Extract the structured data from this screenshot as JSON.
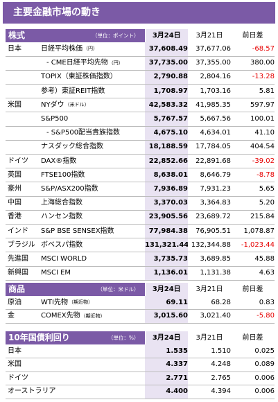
{
  "title": "主要金融市場の動き",
  "sections": [
    {
      "title": "株式",
      "unit": "（単位：ポイント）",
      "columns": [
        "3月24日",
        "3月21日",
        "前日差"
      ],
      "rows": [
        {
          "country": "日本",
          "name": "日経平均株価",
          "unit": "（円）",
          "d1": "37,608.49",
          "d2": "37,677.06",
          "diff": "-68.57",
          "neg": true,
          "indent": 1
        },
        {
          "country": "",
          "name": "- CME日経平均先物",
          "unit": "（円）",
          "d1": "37,735.00",
          "d2": "37,355.00",
          "diff": "380.00",
          "neg": false,
          "indent": 2
        },
        {
          "country": "",
          "name": "TOPIX（東証株価指数）",
          "unit": "",
          "d1": "2,790.88",
          "d2": "2,804.16",
          "diff": "-13.28",
          "neg": true,
          "indent": 1
        },
        {
          "country": "",
          "name": "参考）東証REIT指数",
          "unit": "",
          "d1": "1,708.97",
          "d2": "1,703.16",
          "diff": "5.81",
          "neg": false,
          "indent": 1
        },
        {
          "country": "米国",
          "name": "NYダウ",
          "unit": "（米ドル）",
          "d1": "42,583.32",
          "d2": "41,985.35",
          "diff": "597.97",
          "neg": false,
          "indent": 1
        },
        {
          "country": "",
          "name": "S&P500",
          "unit": "",
          "d1": "5,767.57",
          "d2": "5,667.56",
          "diff": "100.01",
          "neg": false,
          "indent": 1
        },
        {
          "country": "",
          "name": "- S&P500配当貴族指数",
          "unit": "",
          "d1": "4,675.10",
          "d2": "4,634.01",
          "diff": "41.10",
          "neg": false,
          "indent": 2
        },
        {
          "country": "",
          "name": "ナスダック総合指数",
          "unit": "",
          "d1": "18,188.59",
          "d2": "17,784.05",
          "diff": "404.54",
          "neg": false,
          "indent": 1
        },
        {
          "country": "ドイツ",
          "name": "DAX®指数",
          "unit": "",
          "d1": "22,852.66",
          "d2": "22,891.68",
          "diff": "-39.02",
          "neg": true,
          "indent": 1
        },
        {
          "country": "英国",
          "name": "FTSE100指数",
          "unit": "",
          "d1": "8,638.01",
          "d2": "8,646.79",
          "diff": "-8.78",
          "neg": true,
          "indent": 1
        },
        {
          "country": "豪州",
          "name": "S&P/ASX200指数",
          "unit": "",
          "d1": "7,936.89",
          "d2": "7,931.23",
          "diff": "5.65",
          "neg": false,
          "indent": 1
        },
        {
          "country": "中国",
          "name": "上海総合指数",
          "unit": "",
          "d1": "3,370.03",
          "d2": "3,364.83",
          "diff": "5.20",
          "neg": false,
          "indent": 1
        },
        {
          "country": "香港",
          "name": "ハンセン指数",
          "unit": "",
          "d1": "23,905.56",
          "d2": "23,689.72",
          "diff": "215.84",
          "neg": false,
          "indent": 1
        },
        {
          "country": "インド",
          "name": "S&P BSE SENSEX指数",
          "unit": "",
          "d1": "77,984.38",
          "d2": "76,905.51",
          "diff": "1,078.87",
          "neg": false,
          "indent": 1
        },
        {
          "country": "ブラジル",
          "name": "ボベスパ指数",
          "unit": "",
          "d1": "131,321.44",
          "d2": "132,344.88",
          "diff": "-1,023.44",
          "neg": true,
          "indent": 1
        },
        {
          "country": "先進国",
          "name": "MSCI WORLD",
          "unit": "",
          "d1": "3,735.73",
          "d2": "3,689.85",
          "diff": "45.88",
          "neg": false,
          "indent": 1
        },
        {
          "country": "新興国",
          "name": "MSCI EM",
          "unit": "",
          "d1": "1,136.01",
          "d2": "1,131.38",
          "diff": "4.63",
          "neg": false,
          "indent": 1
        }
      ]
    },
    {
      "title": "商品",
      "unit": "（単位：米ドル）",
      "columns": [
        "3月24日",
        "3月21日",
        "前日差"
      ],
      "rows": [
        {
          "country": "原油",
          "name": "WTI先物",
          "unit": "（期近物）",
          "d1": "69.11",
          "d2": "68.28",
          "diff": "0.83",
          "neg": false,
          "indent": 1
        },
        {
          "country": "金",
          "name": "COMEX先物",
          "unit": "（期近物）",
          "d1": "3,015.60",
          "d2": "3,021.40",
          "diff": "-5.80",
          "neg": true,
          "indent": 1
        }
      ]
    },
    {
      "title": "10年国債利回り",
      "unit": "（単位：%）",
      "columns": [
        "3月24日",
        "3月21日",
        "前日差"
      ],
      "rows": [
        {
          "country": "日本",
          "name": "",
          "unit": "",
          "d1": "1.535",
          "d2": "1.510",
          "diff": "0.025",
          "neg": false,
          "indent": 1
        },
        {
          "country": "米国",
          "name": "",
          "unit": "",
          "d1": "4.337",
          "d2": "4.248",
          "diff": "0.089",
          "neg": false,
          "indent": 1
        },
        {
          "country": "ドイツ",
          "name": "",
          "unit": "",
          "d1": "2.771",
          "d2": "2.765",
          "diff": "0.006",
          "neg": false,
          "indent": 1
        },
        {
          "country": "オーストラリア",
          "name": "",
          "unit": "",
          "d1": "4.400",
          "d2": "4.394",
          "diff": "0.006",
          "neg": false,
          "indent": 1
        }
      ]
    }
  ]
}
